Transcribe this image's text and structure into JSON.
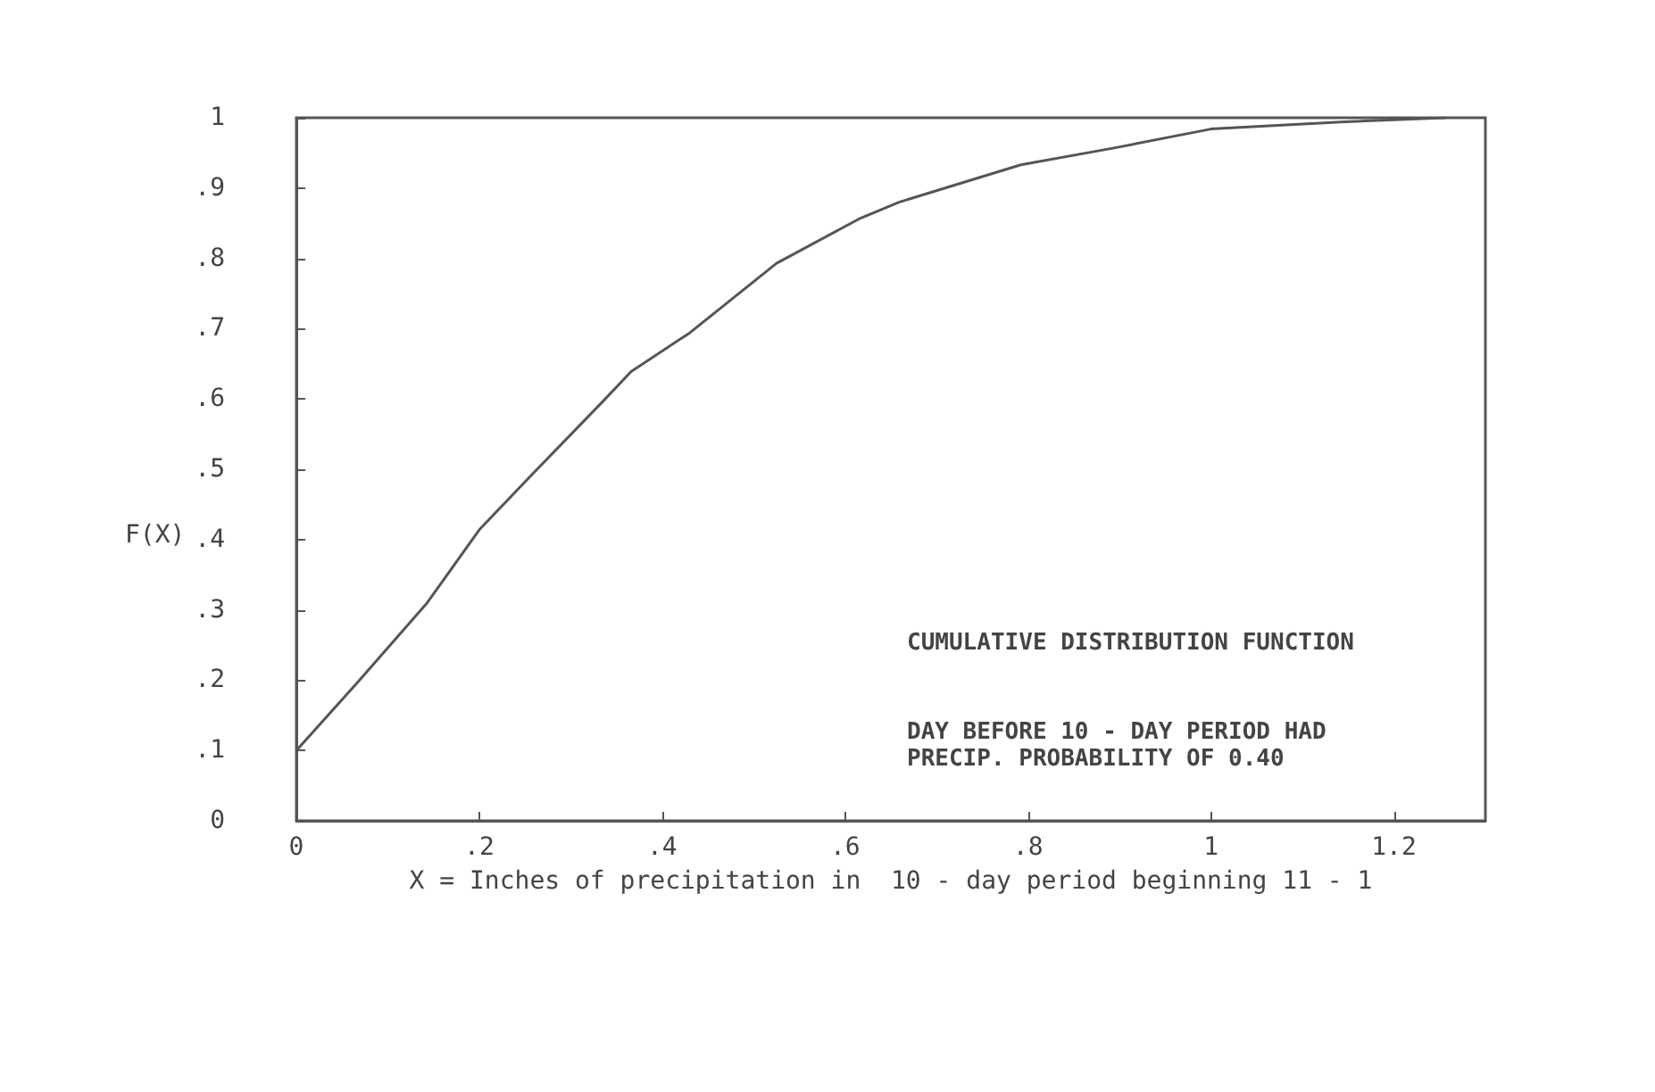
{
  "chart_data": {
    "type": "line",
    "xlabel": "X = Inches of precipitation in  10 - day period beginning 11 - 1",
    "ylabel": "F(X)",
    "annotations": [
      "CUMULATIVE DISTRIBUTION FUNCTION",
      "DAY BEFORE 10 - DAY PERIOD HAD\nPRECIP. PROBABILITY OF 0.40"
    ],
    "x": [
      0,
      0.067,
      0.143,
      0.2,
      0.258,
      0.334,
      0.366,
      0.43,
      0.525,
      0.615,
      0.659,
      0.792,
      0.894,
      1.0,
      1.142,
      1.256
    ],
    "series": [
      {
        "color": "#555555",
        "values": [
          0.1,
          0.197,
          0.31,
          0.414,
          0.493,
          0.595,
          0.639,
          0.694,
          0.793,
          0.856,
          0.88,
          0.933,
          0.957,
          0.984,
          0.994,
          1.0
        ]
      }
    ],
    "xlim": [
      0,
      1.3
    ],
    "xticks": [
      {
        "value": 0,
        "label": "0"
      },
      {
        "value": 0.2,
        "label": ".2"
      },
      {
        "value": 0.4,
        "label": ".4"
      },
      {
        "value": 0.6,
        "label": ".6"
      },
      {
        "value": 0.8,
        "label": ".8"
      },
      {
        "value": 1,
        "label": "1"
      },
      {
        "value": 1.2,
        "label": "1.2"
      }
    ],
    "ylim": [
      0,
      1
    ],
    "yticks": [
      {
        "value": 0,
        "label": "0"
      },
      {
        "value": 0.1,
        "label": ".1"
      },
      {
        "value": 0.2,
        "label": ".2"
      },
      {
        "value": 0.3,
        "label": ".3"
      },
      {
        "value": 0.4,
        "label": ".4"
      },
      {
        "value": 0.5,
        "label": ".5"
      },
      {
        "value": 0.6,
        "label": ".6"
      },
      {
        "value": 0.7,
        "label": ".7"
      },
      {
        "value": 0.8,
        "label": ".8"
      },
      {
        "value": 0.9,
        "label": ".9"
      },
      {
        "value": 1,
        "label": "1"
      }
    ],
    "grid": false,
    "marker": "none",
    "line_style": "solid"
  }
}
